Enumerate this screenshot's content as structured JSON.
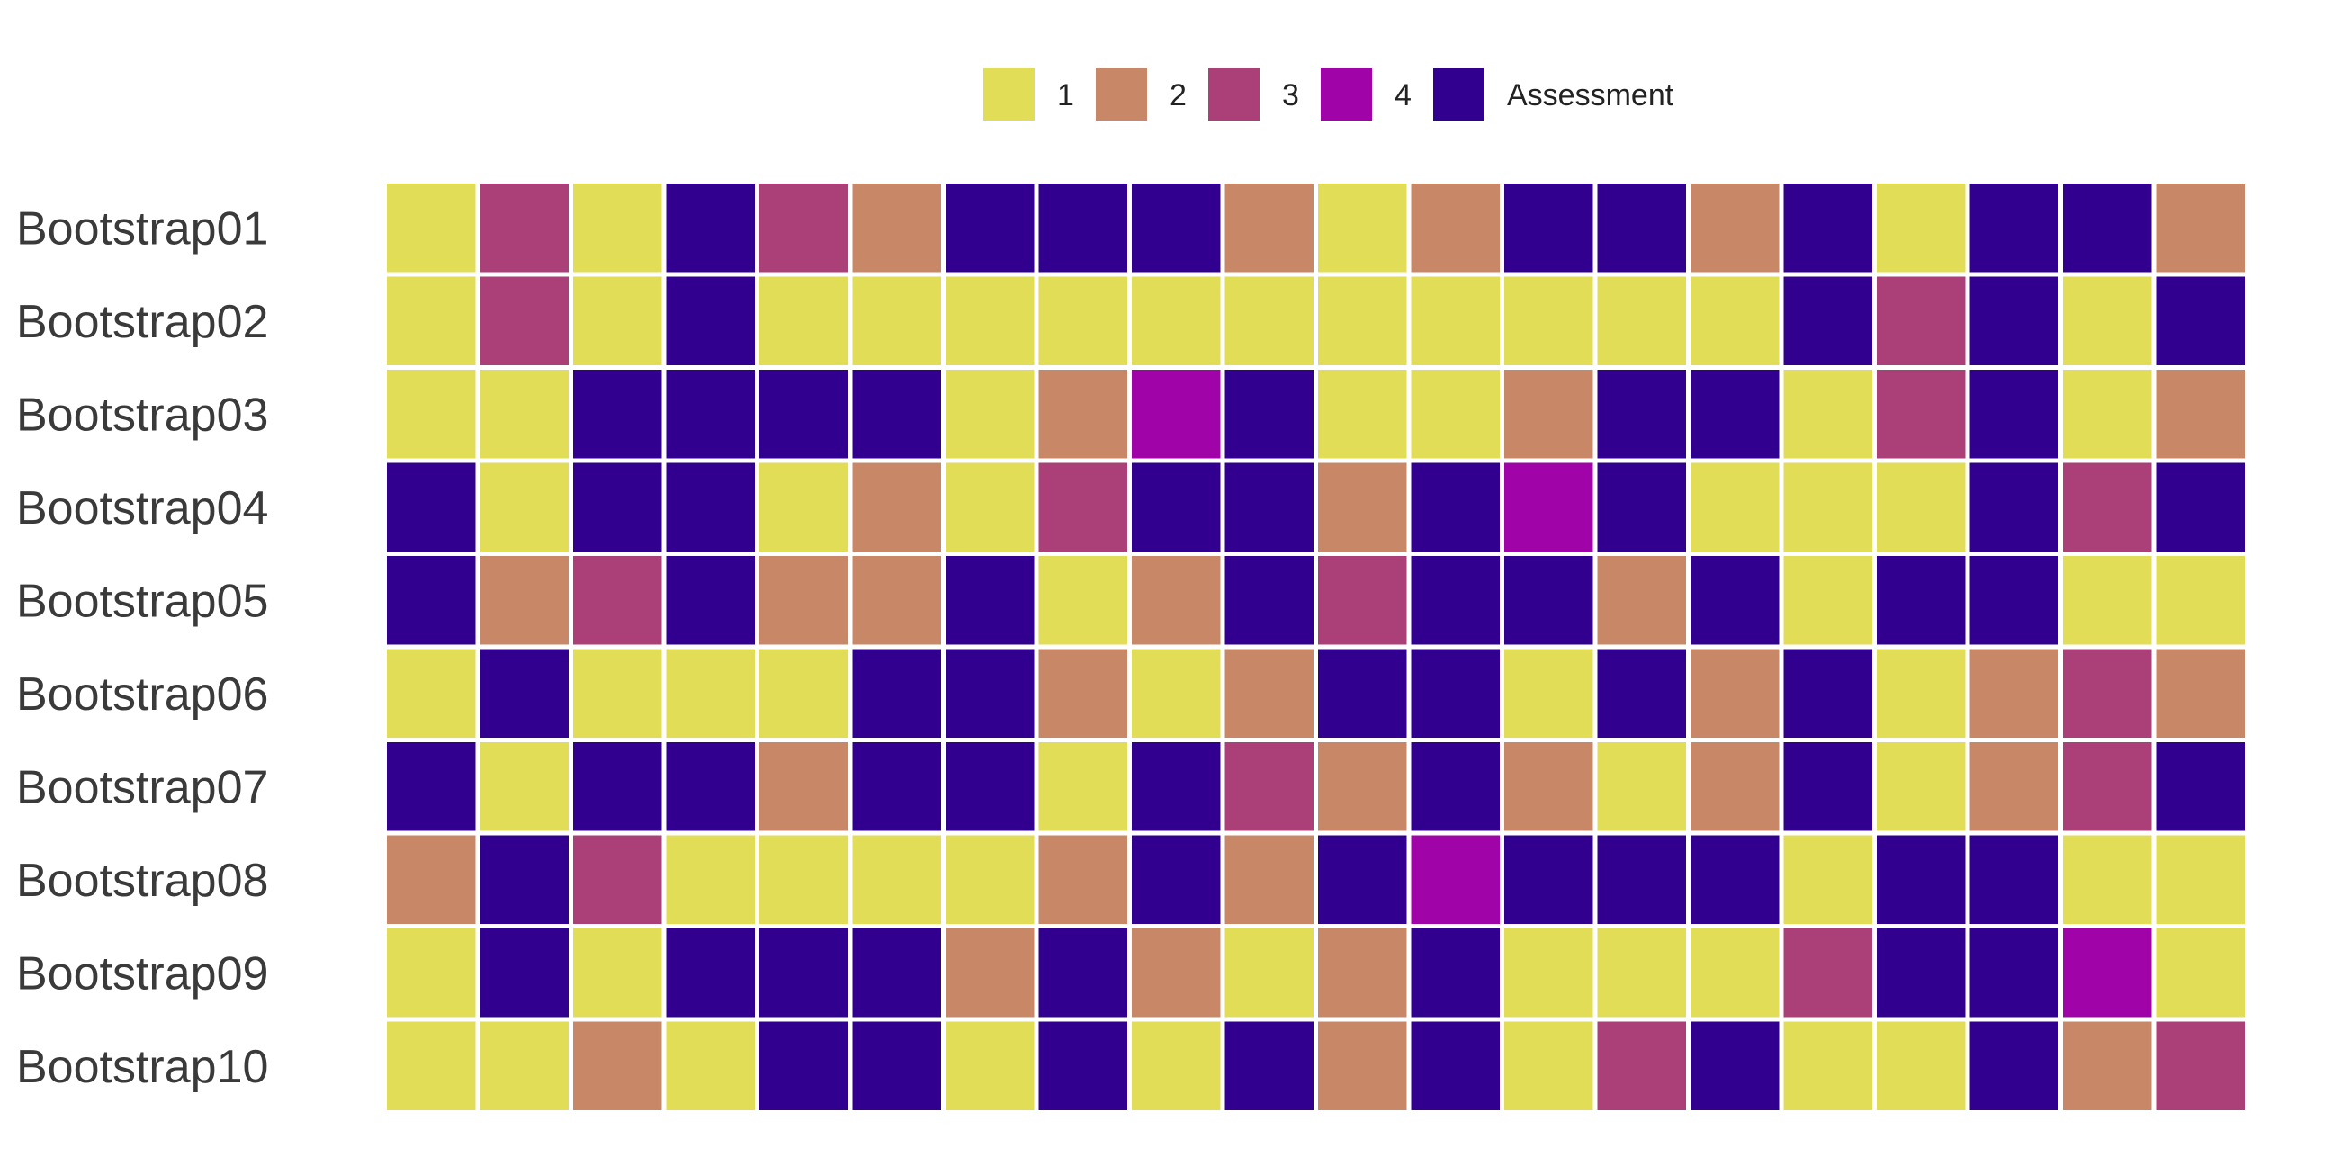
{
  "colors": {
    "1": "#E1DD56",
    "2": "#C88867",
    "3": "#AB3F77",
    "4": "#A003A8",
    "Assessment": "#32008F"
  },
  "chart_data": {
    "type": "heatmap",
    "title": "",
    "legend": {
      "position": "top-center",
      "entries": [
        "1",
        "2",
        "3",
        "4",
        "Assessment"
      ]
    },
    "rows": [
      "Bootstrap01",
      "Bootstrap02",
      "Bootstrap03",
      "Bootstrap04",
      "Bootstrap05",
      "Bootstrap06",
      "Bootstrap07",
      "Bootstrap08",
      "Bootstrap09",
      "Bootstrap10"
    ],
    "columns": 20,
    "values": [
      [
        "1",
        "3",
        "1",
        "Assessment",
        "3",
        "2",
        "Assessment",
        "Assessment",
        "Assessment",
        "2",
        "1",
        "2",
        "Assessment",
        "Assessment",
        "2",
        "Assessment",
        "1",
        "Assessment",
        "Assessment",
        "2"
      ],
      [
        "1",
        "3",
        "1",
        "Assessment",
        "1",
        "1",
        "1",
        "1",
        "1",
        "1",
        "1",
        "1",
        "1",
        "1",
        "1",
        "Assessment",
        "3",
        "Assessment",
        "1",
        "Assessment"
      ],
      [
        "1",
        "1",
        "Assessment",
        "Assessment",
        "Assessment",
        "Assessment",
        "1",
        "2",
        "4",
        "Assessment",
        "1",
        "1",
        "2",
        "Assessment",
        "Assessment",
        "1",
        "3",
        "Assessment",
        "1",
        "2"
      ],
      [
        "Assessment",
        "1",
        "Assessment",
        "Assessment",
        "1",
        "2",
        "1",
        "3",
        "Assessment",
        "Assessment",
        "2",
        "Assessment",
        "4",
        "Assessment",
        "1",
        "1",
        "1",
        "Assessment",
        "3",
        "Assessment"
      ],
      [
        "Assessment",
        "2",
        "3",
        "Assessment",
        "2",
        "2",
        "Assessment",
        "1",
        "2",
        "Assessment",
        "3",
        "Assessment",
        "Assessment",
        "2",
        "Assessment",
        "1",
        "Assessment",
        "Assessment",
        "1",
        "1"
      ],
      [
        "1",
        "Assessment",
        "1",
        "1",
        "1",
        "Assessment",
        "Assessment",
        "2",
        "1",
        "2",
        "Assessment",
        "Assessment",
        "1",
        "Assessment",
        "2",
        "Assessment",
        "1",
        "2",
        "3",
        "2"
      ],
      [
        "Assessment",
        "1",
        "Assessment",
        "Assessment",
        "2",
        "Assessment",
        "Assessment",
        "1",
        "Assessment",
        "3",
        "2",
        "Assessment",
        "2",
        "1",
        "2",
        "Assessment",
        "1",
        "2",
        "3",
        "Assessment"
      ],
      [
        "2",
        "Assessment",
        "3",
        "1",
        "1",
        "1",
        "1",
        "2",
        "Assessment",
        "2",
        "Assessment",
        "4",
        "Assessment",
        "Assessment",
        "Assessment",
        "1",
        "Assessment",
        "Assessment",
        "1",
        "1"
      ],
      [
        "1",
        "Assessment",
        "1",
        "Assessment",
        "Assessment",
        "Assessment",
        "2",
        "Assessment",
        "2",
        "1",
        "2",
        "Assessment",
        "1",
        "1",
        "1",
        "3",
        "Assessment",
        "Assessment",
        "4",
        "1"
      ],
      [
        "1",
        "1",
        "2",
        "1",
        "Assessment",
        "Assessment",
        "1",
        "Assessment",
        "1",
        "Assessment",
        "2",
        "Assessment",
        "1",
        "3",
        "Assessment",
        "1",
        "1",
        "Assessment",
        "2",
        "3"
      ]
    ]
  }
}
